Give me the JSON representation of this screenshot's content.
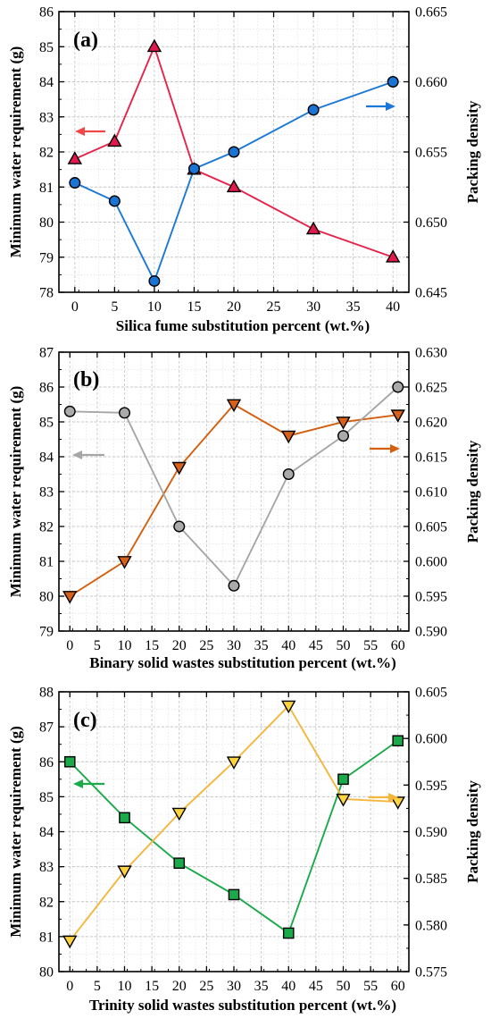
{
  "chart_data": [
    {
      "type": "line",
      "panel_label": "(a)",
      "xlabel": "Silica fume substitution percent (wt.%)",
      "ylabel": "Minimum water requirement (g)",
      "y2label": "Packing density",
      "x_ticks": [
        "0",
        "5",
        "10",
        "15",
        "20",
        "25",
        "30",
        "35",
        "40"
      ],
      "xlim": [
        -2,
        42
      ],
      "ylim": [
        78,
        86
      ],
      "y_ticks": [
        "78",
        "79",
        "80",
        "81",
        "82",
        "83",
        "84",
        "85",
        "86"
      ],
      "y2lim": [
        0.645,
        0.665
      ],
      "y2_ticks": [
        "0.645",
        "0.650",
        "0.655",
        "0.660",
        "0.665"
      ],
      "grid": true,
      "series": [
        {
          "axis": "left",
          "marker": "triangle-up",
          "color": "#e8234a",
          "marker_fill": "#e0194f",
          "x": [
            0,
            5,
            10,
            15,
            20,
            30,
            40
          ],
          "y": [
            81.8,
            82.3,
            85.0,
            81.5,
            81.0,
            79.8,
            79.0
          ]
        },
        {
          "axis": "right",
          "marker": "circle",
          "color": "#1b78d6",
          "marker_fill": "#1a74d4",
          "x": [
            0,
            5,
            10,
            15,
            20,
            30,
            40
          ],
          "y": [
            0.6528,
            0.6515,
            0.6458,
            0.6538,
            0.655,
            0.658,
            0.66
          ]
        }
      ],
      "arrows": [
        {
          "direction": "left",
          "color": "#f04848"
        },
        {
          "direction": "right",
          "color": "#1b78d6"
        }
      ]
    },
    {
      "type": "line",
      "panel_label": "(b)",
      "xlabel": "Binary solid wastes substitution percent (wt.%)",
      "ylabel": "Minimum water requirement (g)",
      "y2label": "Packing density",
      "x_ticks": [
        "0",
        "5",
        "10",
        "15",
        "20",
        "25",
        "30",
        "35",
        "40",
        "45",
        "50",
        "55",
        "60"
      ],
      "xlim": [
        -2,
        62
      ],
      "ylim": [
        79,
        87
      ],
      "y_ticks": [
        "79",
        "80",
        "81",
        "82",
        "83",
        "84",
        "85",
        "86",
        "87"
      ],
      "y2lim": [
        0.59,
        0.63
      ],
      "y2_ticks": [
        "0.590",
        "0.595",
        "0.600",
        "0.605",
        "0.610",
        "0.615",
        "0.620",
        "0.625",
        "0.630"
      ],
      "grid": true,
      "series": [
        {
          "axis": "left",
          "marker": "triangle-down",
          "color": "#d45f0e",
          "marker_fill": "#d7601a",
          "marker_fill_inner": "#e0194f",
          "x": [
            0,
            10,
            20,
            30,
            40,
            50,
            60
          ],
          "y": [
            80.0,
            81.0,
            83.7,
            85.5,
            84.6,
            85.0,
            85.2
          ]
        },
        {
          "axis": "right",
          "marker": "circle",
          "color": "#a6a6a6",
          "marker_fill": "#aaaaaa",
          "x": [
            0,
            10,
            20,
            30,
            40,
            50,
            60
          ],
          "y": [
            0.6215,
            0.6213,
            0.605,
            0.5965,
            0.6125,
            0.618,
            0.625
          ]
        }
      ],
      "arrows": [
        {
          "direction": "left",
          "color": "#a6a6a6"
        },
        {
          "direction": "right",
          "color": "#d45f0e"
        }
      ]
    },
    {
      "type": "line",
      "panel_label": "(c)",
      "xlabel": "Trinity solid wastes substitution percent (wt.%)",
      "ylabel": "Minimum water requirement (g)",
      "y2label": "Packing density",
      "x_ticks": [
        "0",
        "5",
        "10",
        "15",
        "20",
        "25",
        "30",
        "35",
        "40",
        "45",
        "50",
        "55",
        "60"
      ],
      "xlim": [
        -2,
        62
      ],
      "ylim": [
        80,
        88
      ],
      "y_ticks": [
        "80",
        "81",
        "82",
        "83",
        "84",
        "85",
        "86",
        "87",
        "88"
      ],
      "y2lim": [
        0.575,
        0.605
      ],
      "y2_ticks": [
        "0.575",
        "0.580",
        "0.585",
        "0.590",
        "0.595",
        "0.600",
        "0.605"
      ],
      "grid": true,
      "series": [
        {
          "axis": "left",
          "marker": "square",
          "color": "#1aaa4a",
          "marker_fill": "#1aaa4a",
          "x": [
            0,
            10,
            20,
            30,
            40,
            50,
            60
          ],
          "y": [
            86.0,
            84.4,
            83.1,
            82.2,
            81.1,
            85.5,
            86.6
          ]
        },
        {
          "axis": "right",
          "marker": "triangle-down",
          "color": "#f6b63a",
          "marker_fill": "#fdd33f",
          "x": [
            0,
            10,
            20,
            30,
            40,
            50,
            60
          ],
          "y": [
            0.5783,
            0.5858,
            0.592,
            0.5975,
            0.6035,
            0.5935,
            0.5932
          ]
        }
      ],
      "arrows": [
        {
          "direction": "left",
          "color": "#1aaa4a"
        },
        {
          "direction": "right",
          "color": "#f6b63a"
        }
      ]
    }
  ]
}
